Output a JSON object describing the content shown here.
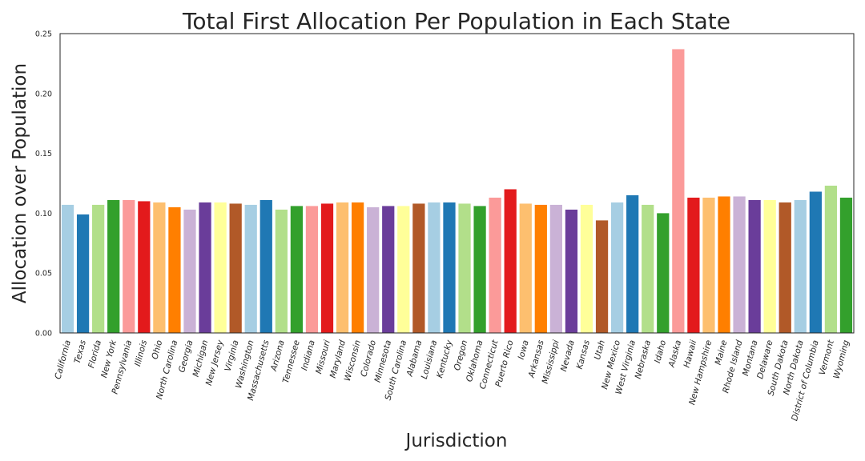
{
  "chart_data": {
    "type": "bar",
    "title": "Total First Allocation Per Population in Each State",
    "xlabel": "Jurisdiction",
    "ylabel": "Allocation over Population",
    "ylim": [
      0,
      0.25
    ],
    "yticks": [
      "0.00",
      "0.05",
      "0.10",
      "0.15",
      "0.20",
      "0.25"
    ],
    "grid": false,
    "palette": [
      "#a6cee3",
      "#1f78b4",
      "#b2df8a",
      "#33a02c",
      "#fb9a99",
      "#e31a1c",
      "#fdbf6f",
      "#ff7f00",
      "#cab2d6",
      "#6a3d9a",
      "#ffff99",
      "#b15928"
    ],
    "categories": [
      "California",
      "Texas",
      "Florida",
      "New York",
      "Pennsylvania",
      "Illinois",
      "Ohio",
      "North Carolina",
      "Georgia",
      "Michigan",
      "New Jersey",
      "Virginia",
      "Washington",
      "Massachusetts",
      "Arizona",
      "Tennessee",
      "Indiana",
      "Missouri",
      "Maryland",
      "Wisconsin",
      "Colorado",
      "Minnesota",
      "South Carolina",
      "Alabama",
      "Louisiana",
      "Kentucky",
      "Oregon",
      "Oklahoma",
      "Connecticut",
      "Puerto Rico",
      "Iowa",
      "Arkansas",
      "Mississippi",
      "Nevada",
      "Kansas",
      "Utah",
      "New Mexico",
      "West Virginia",
      "Nebraska",
      "Idaho",
      "Alaska",
      "Hawaii",
      "New Hampshire",
      "Maine",
      "Rhode Island",
      "Montana",
      "Delaware",
      "South Dakota",
      "North Dakota",
      "District of Columbia",
      "Vermont",
      "Wyoming"
    ],
    "values": [
      0.107,
      0.099,
      0.107,
      0.111,
      0.111,
      0.11,
      0.109,
      0.105,
      0.103,
      0.109,
      0.109,
      0.108,
      0.107,
      0.111,
      0.103,
      0.106,
      0.106,
      0.108,
      0.109,
      0.109,
      0.105,
      0.106,
      0.106,
      0.108,
      0.109,
      0.109,
      0.108,
      0.106,
      0.113,
      0.12,
      0.108,
      0.107,
      0.107,
      0.103,
      0.107,
      0.094,
      0.109,
      0.115,
      0.107,
      0.1,
      0.237,
      0.113,
      0.113,
      0.114,
      0.114,
      0.111,
      0.111,
      0.109,
      0.111,
      0.118,
      0.123,
      0.113
    ]
  }
}
